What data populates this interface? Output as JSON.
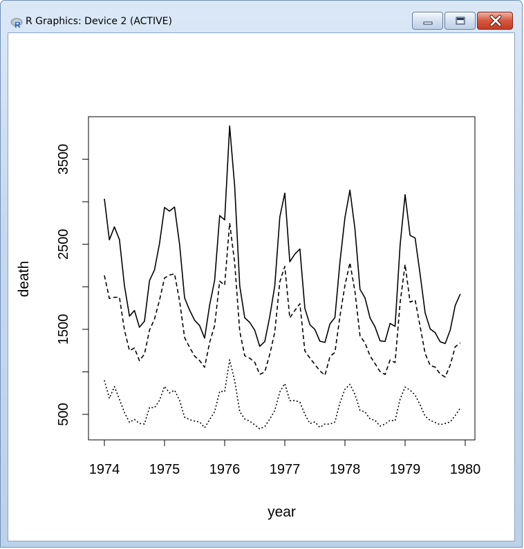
{
  "window": {
    "title": "R Graphics: Device 2 (ACTIVE)",
    "icon": "r-logo-icon",
    "controls": [
      "minimize-icon",
      "maximize-icon",
      "close-icon"
    ]
  },
  "chart_data": {
    "type": "line",
    "title": "",
    "xlabel": "year",
    "ylabel": "death",
    "xlim": [
      1974,
      1980
    ],
    "ylim": [
      200,
      4000
    ],
    "x_ticks": [
      "1974",
      "1975",
      "1976",
      "1977",
      "1978",
      "1979",
      "1980"
    ],
    "y_ticks": [
      "500",
      "1500",
      "2500",
      "3500"
    ],
    "grid": false,
    "legend": "none",
    "x": [
      "1974-01",
      "1974-02",
      "1974-03",
      "1974-04",
      "1974-05",
      "1974-06",
      "1974-07",
      "1974-08",
      "1974-09",
      "1974-10",
      "1974-11",
      "1974-12",
      "1975-01",
      "1975-02",
      "1975-03",
      "1975-04",
      "1975-05",
      "1975-06",
      "1975-07",
      "1975-08",
      "1975-09",
      "1975-10",
      "1975-11",
      "1975-12",
      "1976-01",
      "1976-02",
      "1976-03",
      "1976-04",
      "1976-05",
      "1976-06",
      "1976-07",
      "1976-08",
      "1976-09",
      "1976-10",
      "1976-11",
      "1976-12",
      "1977-01",
      "1977-02",
      "1977-03",
      "1977-04",
      "1977-05",
      "1977-06",
      "1977-07",
      "1977-08",
      "1977-09",
      "1977-10",
      "1977-11",
      "1977-12",
      "1978-01",
      "1978-02",
      "1978-03",
      "1978-04",
      "1978-05",
      "1978-06",
      "1978-07",
      "1978-08",
      "1978-09",
      "1978-10",
      "1978-11",
      "1978-12",
      "1979-01",
      "1979-02",
      "1979-03",
      "1979-04",
      "1979-05",
      "1979-06",
      "1979-07",
      "1979-08",
      "1979-09",
      "1979-10",
      "1979-11",
      "1979-12"
    ],
    "series": [
      {
        "style": "solid",
        "values": [
          3035,
          2552,
          2704,
          2554,
          2014,
          1655,
          1721,
          1524,
          1596,
          2074,
          2199,
          2512,
          2933,
          2889,
          2938,
          2497,
          1870,
          1726,
          1607,
          1545,
          1396,
          1787,
          2076,
          2837,
          2787,
          3891,
          3179,
          2011,
          1636,
          1580,
          1489,
          1300,
          1356,
          1653,
          2013,
          2823,
          3102,
          2294,
          2385,
          2444,
          1748,
          1554,
          1498,
          1361,
          1346,
          1564,
          1640,
          2293,
          2815,
          3137,
          2679,
          1969,
          1870,
          1633,
          1529,
          1366,
          1357,
          1570,
          1535,
          2491,
          3084,
          2605,
          2573,
          2143,
          1693,
          1504,
          1461,
          1354,
          1333,
          1492,
          1781,
          1915
        ]
      },
      {
        "style": "dashed",
        "values": [
          2134,
          1863,
          1877,
          1877,
          1492,
          1249,
          1280,
          1131,
          1209,
          1492,
          1621,
          1846,
          2103,
          2137,
          2153,
          1833,
          1403,
          1288,
          1186,
          1133,
          1053,
          1347,
          1545,
          2066,
          2020,
          2750,
          2283,
          1479,
          1189,
          1160,
          1113,
          970,
          999,
          1208,
          1467,
          2059,
          2240,
          1634,
          1722,
          1801,
          1246,
          1162,
          1087,
          1013,
          959,
          1179,
          1229,
          1655,
          2019,
          2284,
          1942,
          1423,
          1340,
          1187,
          1098,
          1004,
          970,
          1140,
          1110,
          1812,
          2263,
          1820,
          1846,
          1531,
          1215,
          1075,
          1056,
          975,
          940,
          1081,
          1294,
          1341
        ]
      },
      {
        "style": "dotted",
        "values": [
          901,
          689,
          827,
          677,
          522,
          406,
          441,
          393,
          387,
          582,
          578,
          666,
          830,
          752,
          785,
          664,
          467,
          438,
          421,
          412,
          343,
          440,
          531,
          771,
          767,
          1141,
          896,
          532,
          447,
          420,
          376,
          330,
          357,
          445,
          546,
          764,
          862,
          660,
          663,
          643,
          502,
          392,
          411,
          348,
          387,
          385,
          411,
          638,
          796,
          853,
          737,
          546,
          530,
          446,
          431,
          362,
          387,
          430,
          425,
          679,
          821,
          785,
          727,
          612,
          478,
          429,
          405,
          379,
          393,
          411,
          487,
          574
        ]
      }
    ]
  }
}
